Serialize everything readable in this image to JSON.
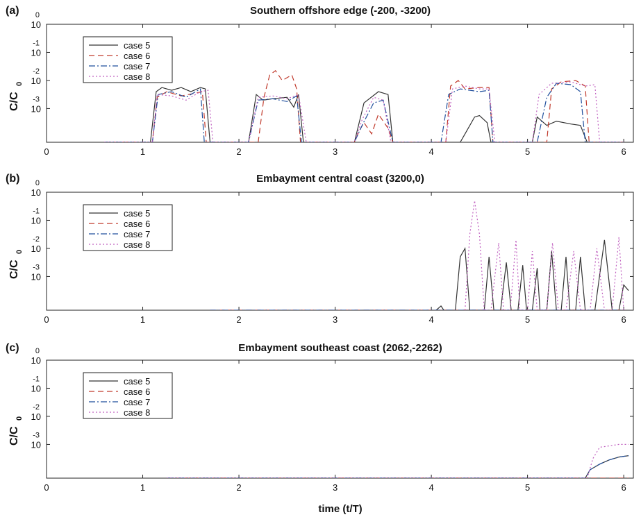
{
  "chart_data": [
    {
      "panel": "(a)",
      "type": "line",
      "title": "Southern offshore edge (-200, -3200)",
      "ylabel": "C/C",
      "ylabel_sub": "0",
      "xlabel": "",
      "x_ticks": [
        "0",
        "1",
        "2",
        "3",
        "4",
        "5",
        "6"
      ],
      "y_ticks": [
        {
          "base": "10",
          "exp": "0",
          "value": 0
        },
        {
          "base": "10",
          "exp": "-1",
          "value": -1
        },
        {
          "base": "10",
          "exp": "-2",
          "value": -2
        },
        {
          "base": "10",
          "exp": "-3",
          "value": -3
        }
      ],
      "xlim": [
        0,
        6.1
      ],
      "ylim_log10": [
        -4.2,
        0
      ],
      "legend": [
        "case 5",
        "case 6",
        "case 7",
        "case 8"
      ],
      "series": [
        {
          "name": "case 5",
          "color": "#333333",
          "dash": "",
          "points": [
            [
              0.6,
              -4.2
            ],
            [
              1.08,
              -4.2
            ],
            [
              1.14,
              -2.4
            ],
            [
              1.2,
              -2.25
            ],
            [
              1.3,
              -2.35
            ],
            [
              1.4,
              -2.25
            ],
            [
              1.5,
              -2.4
            ],
            [
              1.6,
              -2.25
            ],
            [
              1.65,
              -2.3
            ],
            [
              1.7,
              -4.2
            ],
            [
              2.1,
              -4.2
            ],
            [
              2.18,
              -2.5
            ],
            [
              2.25,
              -2.7
            ],
            [
              2.35,
              -2.65
            ],
            [
              2.5,
              -2.6
            ],
            [
              2.57,
              -2.95
            ],
            [
              2.62,
              -2.5
            ],
            [
              2.67,
              -4.2
            ],
            [
              3.2,
              -4.2
            ],
            [
              3.3,
              -2.8
            ],
            [
              3.45,
              -2.4
            ],
            [
              3.55,
              -2.5
            ],
            [
              3.6,
              -4.2
            ],
            [
              4.3,
              -4.2
            ],
            [
              4.35,
              -3.9
            ],
            [
              4.45,
              -3.3
            ],
            [
              4.5,
              -3.25
            ],
            [
              4.58,
              -3.5
            ],
            [
              4.62,
              -4.2
            ],
            [
              5.05,
              -4.2
            ],
            [
              5.1,
              -3.3
            ],
            [
              5.2,
              -3.6
            ],
            [
              5.3,
              -3.45
            ],
            [
              5.45,
              -3.55
            ],
            [
              5.55,
              -3.6
            ],
            [
              5.62,
              -4.2
            ],
            [
              6.0,
              -4.2
            ]
          ]
        },
        {
          "name": "case 6",
          "color": "#c0392b",
          "dash": "8,5",
          "points": [
            [
              0.6,
              -4.2
            ],
            [
              1.1,
              -4.2
            ],
            [
              1.15,
              -2.6
            ],
            [
              1.25,
              -2.4
            ],
            [
              1.4,
              -2.55
            ],
            [
              1.55,
              -2.45
            ],
            [
              1.62,
              -2.4
            ],
            [
              1.66,
              -4.2
            ],
            [
              2.2,
              -4.2
            ],
            [
              2.26,
              -2.6
            ],
            [
              2.32,
              -1.8
            ],
            [
              2.38,
              -1.65
            ],
            [
              2.45,
              -2.0
            ],
            [
              2.55,
              -1.8
            ],
            [
              2.6,
              -2.3
            ],
            [
              2.64,
              -4.2
            ],
            [
              3.2,
              -4.2
            ],
            [
              3.25,
              -3.8
            ],
            [
              3.3,
              -3.5
            ],
            [
              3.38,
              -3.9
            ],
            [
              3.45,
              -3.2
            ],
            [
              3.55,
              -3.7
            ],
            [
              3.6,
              -4.2
            ],
            [
              4.15,
              -4.2
            ],
            [
              4.2,
              -2.2
            ],
            [
              4.28,
              -2.0
            ],
            [
              4.35,
              -2.3
            ],
            [
              4.5,
              -2.25
            ],
            [
              4.6,
              -2.25
            ],
            [
              4.64,
              -4.2
            ],
            [
              5.2,
              -4.2
            ],
            [
              5.25,
              -2.3
            ],
            [
              5.35,
              -2.05
            ],
            [
              5.5,
              -2.0
            ],
            [
              5.6,
              -2.2
            ],
            [
              5.64,
              -4.2
            ],
            [
              6.0,
              -4.2
            ]
          ]
        },
        {
          "name": "case 7",
          "color": "#1f4e9c",
          "dash": "9,3,2,3",
          "points": [
            [
              0.6,
              -4.2
            ],
            [
              1.1,
              -4.2
            ],
            [
              1.16,
              -2.5
            ],
            [
              1.3,
              -2.4
            ],
            [
              1.45,
              -2.6
            ],
            [
              1.6,
              -2.3
            ],
            [
              1.64,
              -4.2
            ],
            [
              2.1,
              -4.2
            ],
            [
              2.2,
              -2.7
            ],
            [
              2.35,
              -2.65
            ],
            [
              2.5,
              -2.75
            ],
            [
              2.6,
              -2.55
            ],
            [
              2.65,
              -4.2
            ],
            [
              3.2,
              -4.2
            ],
            [
              3.28,
              -3.6
            ],
            [
              3.4,
              -2.8
            ],
            [
              3.5,
              -2.7
            ],
            [
              3.6,
              -4.2
            ],
            [
              4.1,
              -4.2
            ],
            [
              4.18,
              -2.5
            ],
            [
              4.3,
              -2.3
            ],
            [
              4.5,
              -2.4
            ],
            [
              4.6,
              -2.35
            ],
            [
              4.64,
              -4.2
            ],
            [
              5.1,
              -4.2
            ],
            [
              5.2,
              -2.6
            ],
            [
              5.3,
              -2.1
            ],
            [
              5.45,
              -2.15
            ],
            [
              5.55,
              -2.4
            ],
            [
              5.6,
              -4.2
            ],
            [
              6.0,
              -4.2
            ]
          ]
        },
        {
          "name": "case 8",
          "color": "#c060c0",
          "dash": "2,3",
          "points": [
            [
              0.6,
              -4.2
            ],
            [
              1.1,
              -4.2
            ],
            [
              1.15,
              -2.5
            ],
            [
              1.3,
              -2.55
            ],
            [
              1.45,
              -2.7
            ],
            [
              1.6,
              -2.4
            ],
            [
              1.68,
              -2.35
            ],
            [
              1.73,
              -4.2
            ],
            [
              2.1,
              -4.2
            ],
            [
              2.2,
              -2.6
            ],
            [
              2.35,
              -2.55
            ],
            [
              2.5,
              -2.65
            ],
            [
              2.62,
              -2.5
            ],
            [
              2.7,
              -4.2
            ],
            [
              3.2,
              -4.2
            ],
            [
              3.28,
              -3.4
            ],
            [
              3.4,
              -2.6
            ],
            [
              3.5,
              -2.7
            ],
            [
              3.58,
              -4.2
            ],
            [
              4.15,
              -4.2
            ],
            [
              4.22,
              -2.3
            ],
            [
              4.35,
              -2.2
            ],
            [
              4.5,
              -2.3
            ],
            [
              4.6,
              -2.3
            ],
            [
              4.66,
              -4.2
            ],
            [
              5.05,
              -4.2
            ],
            [
              5.12,
              -2.5
            ],
            [
              5.25,
              -2.1
            ],
            [
              5.45,
              -2.05
            ],
            [
              5.6,
              -2.2
            ],
            [
              5.7,
              -2.15
            ],
            [
              5.75,
              -4.2
            ],
            [
              6.0,
              -4.2
            ]
          ]
        }
      ]
    },
    {
      "panel": "(b)",
      "type": "line",
      "title": "Embayment central coast (3200,0)",
      "ylabel": "C/C",
      "ylabel_sub": "0",
      "xlabel": "",
      "x_ticks": [
        "0",
        "1",
        "2",
        "3",
        "4",
        "5",
        "6"
      ],
      "y_ticks": [
        {
          "base": "10",
          "exp": "0",
          "value": 0
        },
        {
          "base": "10",
          "exp": "-1",
          "value": -1
        },
        {
          "base": "10",
          "exp": "-2",
          "value": -2
        },
        {
          "base": "10",
          "exp": "-3",
          "value": -3
        }
      ],
      "xlim": [
        0,
        6.1
      ],
      "ylim_log10": [
        -4.2,
        0
      ],
      "legend": [
        "case 5",
        "case 6",
        "case 7",
        "case 8"
      ],
      "series": [
        {
          "name": "case 5",
          "color": "#333333",
          "dash": "",
          "points": [
            [
              4.05,
              -4.2
            ],
            [
              4.1,
              -4.05
            ],
            [
              4.13,
              -4.2
            ],
            [
              4.25,
              -4.2
            ],
            [
              4.3,
              -2.3
            ],
            [
              4.35,
              -2.0
            ],
            [
              4.4,
              -4.2
            ],
            [
              4.55,
              -4.2
            ],
            [
              4.6,
              -2.3
            ],
            [
              4.65,
              -4.2
            ],
            [
              4.72,
              -4.2
            ],
            [
              4.78,
              -2.5
            ],
            [
              4.83,
              -4.2
            ],
            [
              4.9,
              -4.2
            ],
            [
              4.95,
              -2.6
            ],
            [
              4.99,
              -4.2
            ],
            [
              5.05,
              -4.2
            ],
            [
              5.1,
              -2.7
            ],
            [
              5.13,
              -4.2
            ],
            [
              5.2,
              -4.2
            ],
            [
              5.25,
              -2.1
            ],
            [
              5.3,
              -4.2
            ],
            [
              5.35,
              -4.2
            ],
            [
              5.4,
              -2.3
            ],
            [
              5.44,
              -4.2
            ],
            [
              5.5,
              -4.2
            ],
            [
              5.55,
              -2.3
            ],
            [
              5.6,
              -4.2
            ],
            [
              5.7,
              -4.2
            ],
            [
              5.8,
              -1.7
            ],
            [
              5.88,
              -4.2
            ],
            [
              5.95,
              -4.2
            ],
            [
              6.0,
              -3.3
            ],
            [
              6.05,
              -3.5
            ]
          ]
        },
        {
          "name": "case 6",
          "color": "#c0392b",
          "dash": "8,5",
          "points": [
            [
              1.7,
              -4.2
            ],
            [
              6.0,
              -4.2
            ]
          ]
        },
        {
          "name": "case 7",
          "color": "#1f4e9c",
          "dash": "9,3,2,3",
          "points": [
            [
              1.7,
              -4.2
            ],
            [
              6.0,
              -4.2
            ]
          ]
        },
        {
          "name": "case 8",
          "color": "#c060c0",
          "dash": "2,3",
          "points": [
            [
              4.35,
              -4.2
            ],
            [
              4.4,
              -1.5
            ],
            [
              4.45,
              -0.3
            ],
            [
              4.5,
              -1.5
            ],
            [
              4.55,
              -4.2
            ],
            [
              4.62,
              -4.2
            ],
            [
              4.7,
              -1.8
            ],
            [
              4.75,
              -4.2
            ],
            [
              4.82,
              -4.2
            ],
            [
              4.88,
              -1.7
            ],
            [
              4.92,
              -4.2
            ],
            [
              5.0,
              -4.2
            ],
            [
              5.05,
              -2.1
            ],
            [
              5.1,
              -4.2
            ],
            [
              5.2,
              -4.2
            ],
            [
              5.26,
              -1.8
            ],
            [
              5.32,
              -4.2
            ],
            [
              5.4,
              -4.2
            ],
            [
              5.48,
              -2.1
            ],
            [
              5.55,
              -4.2
            ],
            [
              5.65,
              -4.2
            ],
            [
              5.72,
              -2.0
            ],
            [
              5.8,
              -4.2
            ],
            [
              5.88,
              -4.2
            ],
            [
              5.95,
              -1.6
            ],
            [
              6.0,
              -4.2
            ]
          ]
        }
      ]
    },
    {
      "panel": "(c)",
      "type": "line",
      "title": "Embayment southeast coast (2062,-2262)",
      "ylabel": "C/C",
      "ylabel_sub": "0",
      "xlabel": "time (t/T)",
      "x_ticks": [
        "0",
        "1",
        "2",
        "3",
        "4",
        "5",
        "6"
      ],
      "y_ticks": [
        {
          "base": "10",
          "exp": "0",
          "value": 0
        },
        {
          "base": "10",
          "exp": "-1",
          "value": -1
        },
        {
          "base": "10",
          "exp": "-2",
          "value": -2
        },
        {
          "base": "10",
          "exp": "-3",
          "value": -3
        }
      ],
      "xlim": [
        0,
        6.1
      ],
      "ylim_log10": [
        -4.2,
        0
      ],
      "legend": [
        "case 5",
        "case 6",
        "case 7",
        "case 8"
      ],
      "series": [
        {
          "name": "case 5",
          "color": "#333333",
          "dash": "",
          "points": [
            [
              1.25,
              -4.2
            ],
            [
              5.6,
              -4.2
            ],
            [
              5.65,
              -3.9
            ],
            [
              5.75,
              -3.7
            ],
            [
              5.85,
              -3.55
            ],
            [
              5.95,
              -3.45
            ],
            [
              6.05,
              -3.4
            ]
          ]
        },
        {
          "name": "case 6",
          "color": "#c0392b",
          "dash": "8,5",
          "points": [
            [
              1.25,
              -4.2
            ],
            [
              6.05,
              -4.2
            ]
          ]
        },
        {
          "name": "case 7",
          "color": "#1f4e9c",
          "dash": "9,3,2,3",
          "points": [
            [
              1.25,
              -4.2
            ],
            [
              5.6,
              -4.2
            ],
            [
              5.65,
              -3.9
            ],
            [
              5.75,
              -3.7
            ],
            [
              5.85,
              -3.55
            ],
            [
              5.95,
              -3.45
            ],
            [
              6.05,
              -3.4
            ]
          ]
        },
        {
          "name": "case 8",
          "color": "#c060c0",
          "dash": "2,3",
          "points": [
            [
              1.25,
              -4.2
            ],
            [
              5.62,
              -4.2
            ],
            [
              5.68,
              -3.5
            ],
            [
              5.75,
              -3.1
            ],
            [
              5.85,
              -3.05
            ],
            [
              5.95,
              -3.0
            ],
            [
              6.05,
              -3.0
            ]
          ]
        }
      ]
    }
  ]
}
